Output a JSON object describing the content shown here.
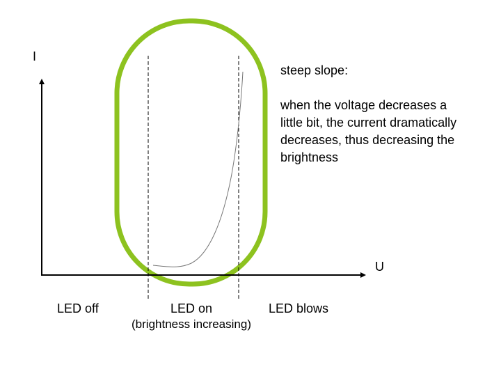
{
  "axes": {
    "y_label": "I",
    "x_label": "U"
  },
  "annotation": {
    "title": "steep slope:",
    "lines": [
      "when the voltage decreases a",
      "little bit, the current dramatically",
      "decreases, thus decreasing the",
      "brightness"
    ]
  },
  "regions": {
    "off": "LED off",
    "on": "LED on",
    "on_sub": "(brightness increasing)",
    "blows": "LED blows"
  },
  "colors": {
    "highlight": "#8dc21f",
    "curve": "#777777",
    "axis": "#000000"
  }
}
